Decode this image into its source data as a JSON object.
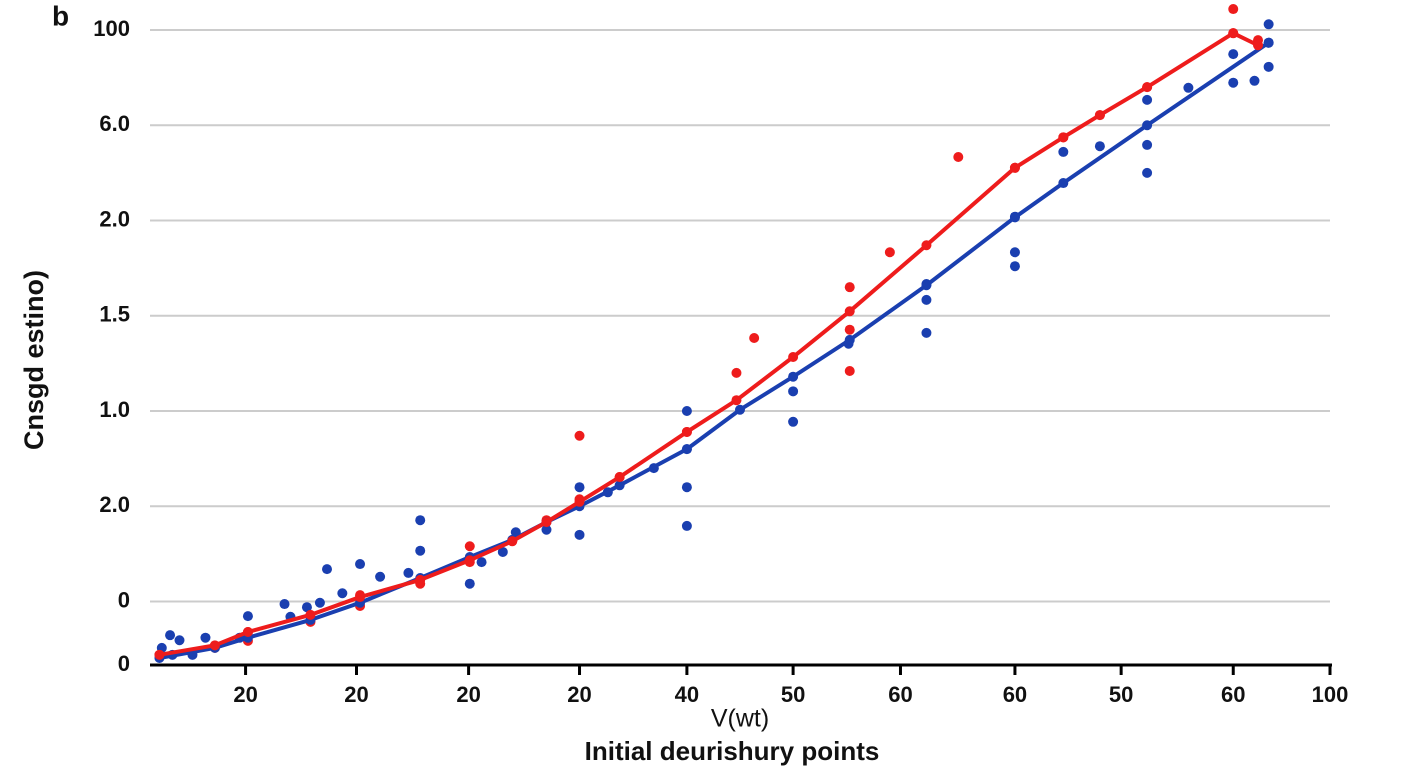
{
  "chart_data": {
    "type": "line",
    "panel_label": "b",
    "ylabel": "Cnsgd estino)",
    "x_unit_label": "V(wt)",
    "xlabel": "Initial deurishury points",
    "grid": true,
    "xlim": [
      0,
      100
    ],
    "ylim": [
      0,
      100
    ],
    "xticks": [
      {
        "value": 8.1,
        "label": "20"
      },
      {
        "value": 17.5,
        "label": "20"
      },
      {
        "value": 27,
        "label": "20"
      },
      {
        "value": 36.4,
        "label": "20"
      },
      {
        "value": 45.5,
        "label": "40"
      },
      {
        "value": 54.5,
        "label": "50"
      },
      {
        "value": 63.6,
        "label": "60"
      },
      {
        "value": 73.3,
        "label": "60"
      },
      {
        "value": 82.3,
        "label": "50"
      },
      {
        "value": 91.8,
        "label": "60"
      },
      100
    ],
    "yticks": [
      0,
      {
        "value": 10,
        "label": "0"
      },
      {
        "value": 25,
        "label": "2.0"
      },
      {
        "value": 40,
        "label": "1.0"
      },
      {
        "value": 55,
        "label": "1.5"
      },
      {
        "value": 70,
        "label": "2.0"
      },
      {
        "value": 85,
        "label": "6.0"
      },
      {
        "value": 100,
        "label": "100"
      }
    ],
    "series": [
      {
        "mode": "markers",
        "color": "#1a3fb0",
        "x": [
          1.0,
          1.7,
          2.5,
          1.9,
          3.6,
          4.7,
          7.6,
          8.3,
          11.4,
          11.9,
          13.3,
          14.4,
          15.0,
          16.3,
          17.8,
          19.5,
          21.9,
          22.9,
          22.9,
          27.1,
          28.1,
          29.9,
          31.0,
          33.6,
          36.4,
          36.4,
          38.8,
          42.7,
          45.5,
          45.5,
          45.5,
          45.5,
          54.5,
          54.5,
          59.2,
          65.8,
          65.8,
          65.8,
          73.3,
          73.3,
          73.3,
          77.4,
          80.5,
          84.5,
          84.5,
          84.5,
          88.0,
          91.8,
          91.8,
          93.6,
          94.8,
          94.8,
          94.8
        ],
        "values": [
          2.7,
          4.7,
          3.9,
          1.6,
          1.6,
          4.3,
          4.3,
          7.7,
          9.6,
          7.6,
          9.1,
          9.8,
          15.1,
          11.3,
          15.9,
          13.9,
          14.5,
          22.8,
          18.0,
          12.8,
          16.2,
          17.8,
          20.9,
          21.3,
          28.0,
          20.5,
          27.2,
          31.0,
          40.0,
          34.0,
          28.0,
          21.9,
          43.1,
          38.3,
          50.6,
          60.0,
          57.5,
          52.3,
          70.6,
          65.0,
          62.8,
          80.8,
          81.7,
          89.0,
          81.9,
          77.5,
          90.9,
          96.2,
          91.7,
          92.0,
          100.9,
          98.0,
          94.2
        ]
      },
      {
        "mode": "markers",
        "color": "#ee1c1c",
        "x": [
          0.8,
          5.5,
          8.3,
          8.3,
          13.6,
          17.8,
          17.8,
          22.9,
          27.1,
          27.1,
          30.7,
          33.6,
          36.4,
          36.4,
          39.8,
          45.5,
          49.7,
          51.2,
          59.3,
          59.3,
          59.3,
          62.7,
          68.5,
          73.3,
          77.4,
          80.5,
          84.5,
          91.8,
          91.8,
          93.9
        ],
        "values": [
          1.6,
          2.7,
          3.8,
          5.2,
          6.8,
          11.0,
          9.3,
          12.8,
          18.7,
          16.2,
          19.5,
          22.8,
          26.1,
          36.1,
          29.6,
          36.7,
          46.0,
          51.5,
          59.5,
          52.8,
          46.3,
          65.0,
          80.0,
          78.3,
          83.1,
          86.6,
          91.0,
          103.3,
          99.5,
          98.4
        ]
      },
      {
        "mode": "line",
        "color": "#1a3fb0",
        "x": [
          0.8,
          5.5,
          8.3,
          13.6,
          17.8,
          22.9,
          27.1,
          30.7,
          33.6,
          36.4,
          39.8,
          45.5,
          50,
          54.5,
          59.3,
          65.8,
          73.3,
          77.4,
          84.5,
          94.8
        ],
        "values": [
          1.1,
          2.7,
          4.3,
          7.1,
          9.8,
          13.7,
          17,
          19.7,
          22.5,
          25,
          28.3,
          34,
          40.2,
          45.4,
          51.2,
          59.8,
          70.5,
          75.9,
          85,
          98
        ]
      },
      {
        "mode": "line",
        "color": "#ee1c1c",
        "x": [
          0.8,
          5.5,
          8.3,
          13.6,
          17.8,
          22.9,
          27.1,
          30.7,
          33.6,
          36.4,
          39.8,
          45.5,
          49.7,
          54.5,
          59.3,
          65.8,
          73.3,
          77.4,
          80.5,
          84.5,
          91.8,
          93.9
        ],
        "values": [
          1.6,
          3.1,
          5.2,
          7.9,
          10.7,
          13.4,
          16.5,
          19.5,
          22.5,
          25.7,
          29.6,
          36.7,
          41.7,
          48.5,
          55.7,
          66.1,
          78.3,
          83.1,
          86.6,
          91,
          99.5,
          97.6
        ]
      }
    ]
  }
}
